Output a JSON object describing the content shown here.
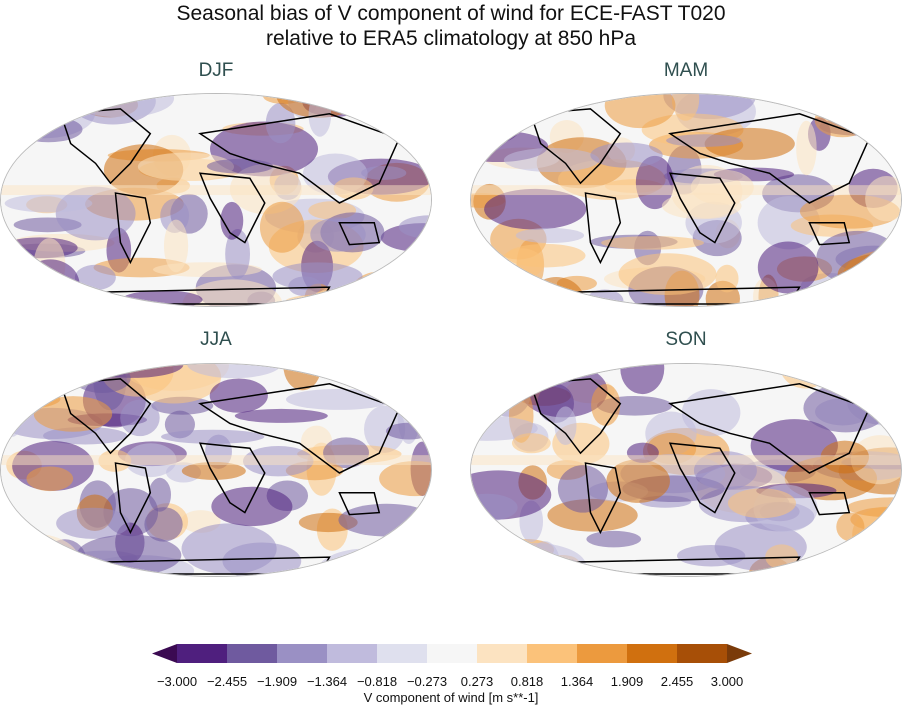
{
  "figure": {
    "title_line1": "Seasonal bias of V component of wind for ECE-FAST T020",
    "title_line2": "relative to ERA5 climatology at 850 hPa",
    "panels": [
      {
        "title": "DJF"
      },
      {
        "title": "MAM"
      },
      {
        "title": "JJA"
      },
      {
        "title": "SON"
      }
    ],
    "colorbar": {
      "label": "V component of wind [m s**-1]",
      "ticks": [
        "−3.000",
        "−2.455",
        "−1.909",
        "−1.364",
        "−0.818",
        "−0.273",
        "0.273",
        "0.818",
        "1.364",
        "1.909",
        "2.455",
        "3.000"
      ],
      "colors": [
        "#4f1f7e",
        "#6f5a9f",
        "#9a90c4",
        "#c0bbdd",
        "#dfe0ee",
        "#f6f6f6",
        "#fce3c1",
        "#fbc27a",
        "#ec9a3e",
        "#d0700f",
        "#a74f07"
      ],
      "extend_min_color": "#3b0a52",
      "extend_max_color": "#7a3b0a"
    }
  }
}
